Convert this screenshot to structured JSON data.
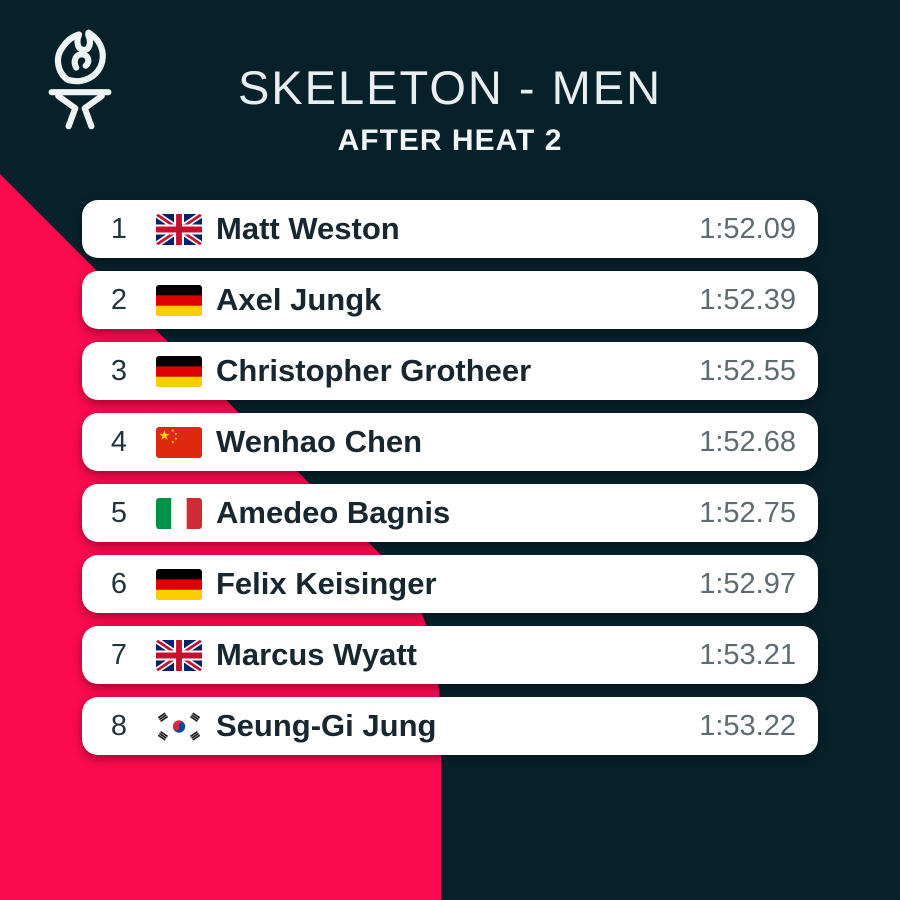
{
  "header": {
    "title": "SKELETON - MEN",
    "subtitle": "AFTER HEAT 2",
    "logo_icon": "torch-icon"
  },
  "colors": {
    "background": "#07212b",
    "accent_pink": "#fc0a4e",
    "card_background": "#ffffff",
    "name_text": "#18272f",
    "rank_text": "#22343c",
    "time_text": "#5e6b71",
    "header_text": "#e9eff1"
  },
  "standings": {
    "rows": [
      {
        "rank": "1",
        "flag": "flag-gb-icon",
        "name": "Matt Weston",
        "time": "1:52.09"
      },
      {
        "rank": "2",
        "flag": "flag-de-icon",
        "name": "Axel Jungk",
        "time": "1:52.39"
      },
      {
        "rank": "3",
        "flag": "flag-de-icon",
        "name": "Christopher Grotheer",
        "time": "1:52.55"
      },
      {
        "rank": "4",
        "flag": "flag-cn-icon",
        "name": "Wenhao Chen",
        "time": "1:52.68"
      },
      {
        "rank": "5",
        "flag": "flag-it-icon",
        "name": "Amedeo Bagnis",
        "time": "1:52.75"
      },
      {
        "rank": "6",
        "flag": "flag-de-icon",
        "name": "Felix Keisinger",
        "time": "1:52.97"
      },
      {
        "rank": "7",
        "flag": "flag-gb-icon",
        "name": "Marcus Wyatt",
        "time": "1:53.21"
      },
      {
        "rank": "8",
        "flag": "flag-kr-icon",
        "name": "Seung-Gi Jung",
        "time": "1:53.22"
      }
    ]
  },
  "chart_data": {
    "type": "table",
    "title": "SKELETON - MEN",
    "subtitle": "AFTER HEAT 2",
    "columns": [
      "rank",
      "country_flag",
      "athlete",
      "time"
    ],
    "rows": [
      [
        1,
        "GB",
        "Matt Weston",
        "1:52.09"
      ],
      [
        2,
        "DE",
        "Axel Jungk",
        "1:52.39"
      ],
      [
        3,
        "DE",
        "Christopher Grotheer",
        "1:52.55"
      ],
      [
        4,
        "CN",
        "Wenhao Chen",
        "1:52.68"
      ],
      [
        5,
        "IT",
        "Amedeo Bagnis",
        "1:52.75"
      ],
      [
        6,
        "DE",
        "Felix Keisinger",
        "1:52.97"
      ],
      [
        7,
        "GB",
        "Marcus Wyatt",
        "1:53.21"
      ],
      [
        8,
        "KR",
        "Seung-Gi Jung",
        "1:53.22"
      ]
    ]
  }
}
